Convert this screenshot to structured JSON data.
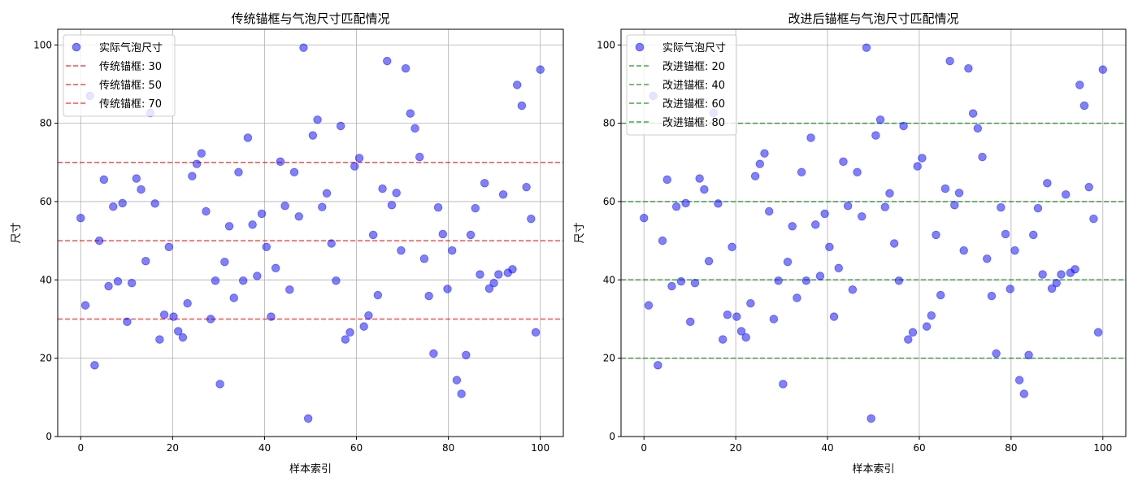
{
  "chart_data": [
    {
      "type": "scatter",
      "title": "传统锚框与气泡尺寸匹配情况",
      "xlabel": "样本索引",
      "ylabel": "尺寸",
      "xlim": [
        -5,
        105
      ],
      "ylim": [
        0,
        104
      ],
      "xticks": [
        0,
        20,
        40,
        60,
        80,
        100
      ],
      "yticks": [
        0,
        20,
        40,
        60,
        80,
        100
      ],
      "grid": true,
      "legend_position": "upper left",
      "scatter_series": {
        "name": "实际气泡尺寸",
        "color": "#0000ff",
        "alpha": 0.5
      },
      "hlines": [
        {
          "label": "传统锚框: 30",
          "y": 30,
          "color": "#ff0000",
          "style": "dashed"
        },
        {
          "label": "传统锚框: 50",
          "y": 50,
          "color": "#ff0000",
          "style": "dashed"
        },
        {
          "label": "传统锚框: 70",
          "y": 70,
          "color": "#ff0000",
          "style": "dashed"
        }
      ]
    },
    {
      "type": "scatter",
      "title": "改进后锚框与气泡尺寸匹配情况",
      "xlabel": "样本索引",
      "ylabel": "尺寸",
      "xlim": [
        -5,
        105
      ],
      "ylim": [
        0,
        104
      ],
      "xticks": [
        0,
        20,
        40,
        60,
        80,
        100
      ],
      "yticks": [
        0,
        20,
        40,
        60,
        80,
        100
      ],
      "grid": true,
      "legend_position": "upper left",
      "scatter_series": {
        "name": "实际气泡尺寸",
        "color": "#0000ff",
        "alpha": 0.5
      },
      "hlines": [
        {
          "label": "改进锚框: 20",
          "y": 20,
          "color": "#008000",
          "style": "dashed"
        },
        {
          "label": "改进锚框: 40",
          "y": 40,
          "color": "#008000",
          "style": "dashed"
        },
        {
          "label": "改进锚框: 60",
          "y": 60,
          "color": "#008000",
          "style": "dashed"
        },
        {
          "label": "改进锚框: 80",
          "y": 80,
          "color": "#008000",
          "style": "dashed"
        }
      ]
    }
  ],
  "shared_data": {
    "x_range": [
      0,
      100
    ],
    "n_points": 100,
    "values": [
      55.8,
      33.5,
      87.0,
      18.2,
      50.0,
      65.6,
      38.4,
      58.7,
      39.6,
      59.6,
      29.3,
      39.2,
      65.9,
      63.1,
      44.8,
      82.6,
      59.5,
      24.8,
      31.1,
      48.4,
      30.6,
      26.9,
      25.3,
      34.0,
      66.5,
      69.6,
      72.3,
      57.5,
      30.0,
      39.8,
      13.4,
      44.6,
      53.7,
      35.4,
      67.5,
      39.8,
      76.3,
      54.1,
      41.0,
      56.9,
      48.4,
      30.6,
      43.0,
      70.2,
      58.9,
      37.5,
      67.5,
      56.2,
      99.3,
      4.6,
      76.9,
      80.9,
      58.6,
      62.1,
      49.3,
      39.8,
      79.3,
      24.8,
      26.6,
      69.0,
      71.1,
      28.1,
      30.9,
      51.5,
      36.1,
      63.3,
      95.9,
      59.1,
      62.2,
      47.5,
      94.0,
      82.5,
      78.7,
      71.4,
      45.4,
      35.9,
      21.2,
      58.5,
      51.7,
      37.7,
      47.5,
      14.4,
      10.9,
      20.8,
      51.5,
      58.3,
      41.4,
      64.7,
      37.8,
      39.2,
      41.4,
      61.8,
      41.8,
      42.7,
      89.8,
      84.5,
      63.7,
      55.6,
      26.6,
      93.7
    ]
  }
}
